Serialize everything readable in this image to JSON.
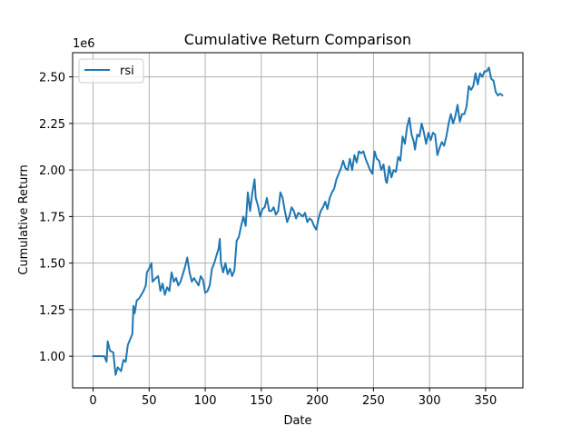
{
  "chart_data": {
    "type": "line",
    "title": "Cumulative Return Comparison",
    "xlabel": "Date",
    "ylabel": "Cumulative Return",
    "y_offset_label": "1e6",
    "xlim": [
      -18.25,
      383.25
    ],
    "ylim": [
      830000,
      2630000
    ],
    "y_scale_factor": 1000000,
    "x_ticks": [
      0,
      50,
      100,
      150,
      200,
      250,
      300,
      350
    ],
    "x_tick_labels": [
      "0",
      "50",
      "100",
      "150",
      "200",
      "250",
      "300",
      "350"
    ],
    "y_ticks": [
      1.0,
      1.25,
      1.5,
      1.75,
      2.0,
      2.25,
      2.5
    ],
    "y_tick_labels": [
      "1.00",
      "1.25",
      "1.50",
      "1.75",
      "2.00",
      "2.25",
      "2.50"
    ],
    "grid": true,
    "legend": {
      "position": "top-left",
      "entries": [
        "rsi"
      ]
    },
    "colors": {
      "rsi": "#1f77b4",
      "grid": "#b0b0b0"
    },
    "series": [
      {
        "name": "rsi",
        "points": [
          [
            0,
            1000000
          ],
          [
            5,
            1000000
          ],
          [
            10,
            1000000
          ],
          [
            12,
            970000
          ],
          [
            13,
            1080000
          ],
          [
            15,
            1030000
          ],
          [
            18,
            1020000
          ],
          [
            20,
            900000
          ],
          [
            22,
            940000
          ],
          [
            25,
            920000
          ],
          [
            27,
            980000
          ],
          [
            29,
            970000
          ],
          [
            31,
            1060000
          ],
          [
            33,
            1090000
          ],
          [
            35,
            1120000
          ],
          [
            36,
            1270000
          ],
          [
            37,
            1230000
          ],
          [
            39,
            1300000
          ],
          [
            41,
            1310000
          ],
          [
            43,
            1330000
          ],
          [
            45,
            1350000
          ],
          [
            47,
            1380000
          ],
          [
            48,
            1450000
          ],
          [
            50,
            1470000
          ],
          [
            52,
            1500000
          ],
          [
            53,
            1400000
          ],
          [
            56,
            1420000
          ],
          [
            58,
            1430000
          ],
          [
            60,
            1350000
          ],
          [
            62,
            1390000
          ],
          [
            64,
            1330000
          ],
          [
            66,
            1370000
          ],
          [
            68,
            1350000
          ],
          [
            70,
            1450000
          ],
          [
            72,
            1400000
          ],
          [
            74,
            1420000
          ],
          [
            76,
            1380000
          ],
          [
            78,
            1400000
          ],
          [
            80,
            1440000
          ],
          [
            82,
            1480000
          ],
          [
            84,
            1530000
          ],
          [
            86,
            1450000
          ],
          [
            88,
            1400000
          ],
          [
            90,
            1420000
          ],
          [
            92,
            1400000
          ],
          [
            94,
            1380000
          ],
          [
            96,
            1430000
          ],
          [
            98,
            1410000
          ],
          [
            100,
            1340000
          ],
          [
            102,
            1350000
          ],
          [
            104,
            1380000
          ],
          [
            106,
            1470000
          ],
          [
            108,
            1500000
          ],
          [
            110,
            1540000
          ],
          [
            112,
            1580000
          ],
          [
            113,
            1630000
          ],
          [
            114,
            1500000
          ],
          [
            116,
            1450000
          ],
          [
            118,
            1500000
          ],
          [
            120,
            1440000
          ],
          [
            122,
            1470000
          ],
          [
            124,
            1430000
          ],
          [
            126,
            1460000
          ],
          [
            128,
            1620000
          ],
          [
            130,
            1640000
          ],
          [
            132,
            1700000
          ],
          [
            134,
            1750000
          ],
          [
            136,
            1700000
          ],
          [
            138,
            1880000
          ],
          [
            140,
            1780000
          ],
          [
            142,
            1880000
          ],
          [
            144,
            1950000
          ],
          [
            145,
            1850000
          ],
          [
            147,
            1810000
          ],
          [
            149,
            1750000
          ],
          [
            151,
            1790000
          ],
          [
            153,
            1800000
          ],
          [
            155,
            1850000
          ],
          [
            157,
            1780000
          ],
          [
            159,
            1780000
          ],
          [
            161,
            1800000
          ],
          [
            163,
            1760000
          ],
          [
            165,
            1780000
          ],
          [
            167,
            1880000
          ],
          [
            169,
            1850000
          ],
          [
            171,
            1780000
          ],
          [
            173,
            1720000
          ],
          [
            175,
            1750000
          ],
          [
            177,
            1800000
          ],
          [
            179,
            1780000
          ],
          [
            181,
            1740000
          ],
          [
            183,
            1770000
          ],
          [
            185,
            1760000
          ],
          [
            187,
            1750000
          ],
          [
            189,
            1770000
          ],
          [
            191,
            1720000
          ],
          [
            193,
            1740000
          ],
          [
            195,
            1730000
          ],
          [
            197,
            1700000
          ],
          [
            199,
            1680000
          ],
          [
            201,
            1740000
          ],
          [
            203,
            1780000
          ],
          [
            205,
            1800000
          ],
          [
            207,
            1830000
          ],
          [
            209,
            1790000
          ],
          [
            211,
            1850000
          ],
          [
            213,
            1880000
          ],
          [
            215,
            1900000
          ],
          [
            217,
            1950000
          ],
          [
            219,
            1980000
          ],
          [
            221,
            2010000
          ],
          [
            223,
            2050000
          ],
          [
            225,
            2010000
          ],
          [
            227,
            2000000
          ],
          [
            229,
            2060000
          ],
          [
            231,
            2000000
          ],
          [
            233,
            2080000
          ],
          [
            235,
            2040000
          ],
          [
            237,
            2100000
          ],
          [
            239,
            2090000
          ],
          [
            241,
            2100000
          ],
          [
            243,
            2060000
          ],
          [
            245,
            2030000
          ],
          [
            247,
            2000000
          ],
          [
            249,
            1980000
          ],
          [
            251,
            2100000
          ],
          [
            253,
            2060000
          ],
          [
            255,
            2050000
          ],
          [
            257,
            2000000
          ],
          [
            259,
            2030000
          ],
          [
            261,
            1940000
          ],
          [
            262,
            1930000
          ],
          [
            264,
            2020000
          ],
          [
            266,
            1960000
          ],
          [
            268,
            2000000
          ],
          [
            270,
            1990000
          ],
          [
            272,
            2070000
          ],
          [
            274,
            2050000
          ],
          [
            276,
            2180000
          ],
          [
            278,
            2140000
          ],
          [
            280,
            2230000
          ],
          [
            282,
            2280000
          ],
          [
            284,
            2190000
          ],
          [
            286,
            2150000
          ],
          [
            287,
            2110000
          ],
          [
            289,
            2190000
          ],
          [
            291,
            2180000
          ],
          [
            293,
            2250000
          ],
          [
            295,
            2200000
          ],
          [
            297,
            2140000
          ],
          [
            299,
            2200000
          ],
          [
            301,
            2160000
          ],
          [
            303,
            2200000
          ],
          [
            305,
            2190000
          ],
          [
            307,
            2080000
          ],
          [
            309,
            2120000
          ],
          [
            311,
            2150000
          ],
          [
            313,
            2130000
          ],
          [
            315,
            2180000
          ],
          [
            317,
            2250000
          ],
          [
            319,
            2300000
          ],
          [
            321,
            2250000
          ],
          [
            323,
            2290000
          ],
          [
            325,
            2350000
          ],
          [
            327,
            2260000
          ],
          [
            329,
            2300000
          ],
          [
            331,
            2300000
          ],
          [
            333,
            2340000
          ],
          [
            335,
            2450000
          ],
          [
            337,
            2430000
          ],
          [
            339,
            2450000
          ],
          [
            341,
            2520000
          ],
          [
            343,
            2460000
          ],
          [
            345,
            2520000
          ],
          [
            347,
            2500000
          ],
          [
            349,
            2530000
          ],
          [
            351,
            2530000
          ],
          [
            353,
            2550000
          ],
          [
            355,
            2490000
          ],
          [
            357,
            2480000
          ],
          [
            359,
            2420000
          ],
          [
            361,
            2400000
          ],
          [
            363,
            2410000
          ],
          [
            365,
            2400000
          ]
        ]
      }
    ]
  }
}
